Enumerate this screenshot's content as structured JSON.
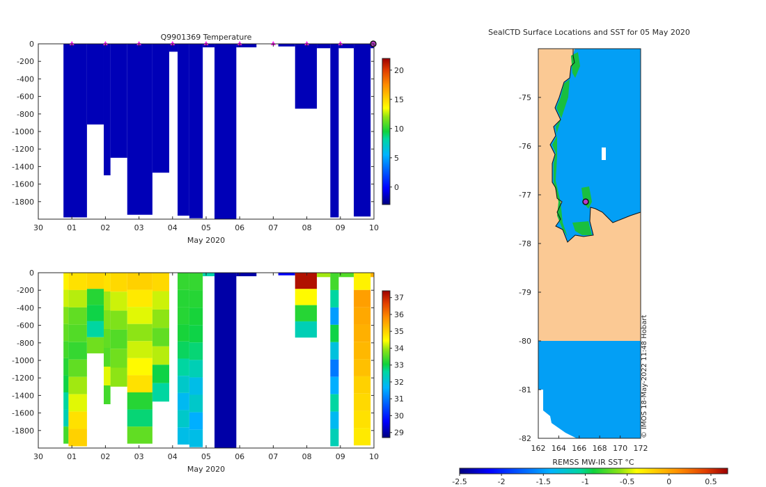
{
  "chart_data": [
    {
      "id": "temperature",
      "type": "heatmap",
      "title": "Q9901369  Temperature",
      "xlabel": "May 2020",
      "ylabel": "",
      "x_domain": [
        30,
        40
      ],
      "y_domain": [
        0,
        -2000
      ],
      "xticks": [
        30,
        31,
        32,
        33,
        34,
        35,
        36,
        37,
        38,
        39,
        40
      ],
      "xtick_labels": [
        "30",
        "01",
        "02",
        "03",
        "04",
        "05",
        "06",
        "07",
        "08",
        "09",
        "10"
      ],
      "yticks": [
        0,
        -200,
        -400,
        -600,
        -800,
        -1000,
        -1200,
        -1400,
        -1600,
        -1800
      ],
      "ytick_labels": [
        "0",
        "-200",
        "-400",
        "-600",
        "-800",
        "-1000",
        "-1200",
        "-1400",
        "-1600",
        "-1800"
      ],
      "colorbar": {
        "min": -3,
        "max": 22,
        "ticks": [
          0,
          5,
          10,
          15,
          20
        ],
        "tick_labels": [
          "0",
          "5",
          "10",
          "15",
          "20"
        ]
      },
      "profile_markers": [
        31,
        32,
        33,
        34,
        35,
        36,
        37,
        38,
        39
      ],
      "last_profile": 40,
      "profiles": [
        {
          "x0": 30.75,
          "x1": 31.45,
          "depth": 1980,
          "surface_depth": 0,
          "value": -1.8
        },
        {
          "x0": 31.45,
          "x1": 31.95,
          "depth": 920,
          "surface_depth": 0,
          "value": -1.8
        },
        {
          "x0": 31.95,
          "x1": 32.15,
          "depth": 1500,
          "surface_depth": 0,
          "value": -1.8
        },
        {
          "x0": 32.15,
          "x1": 32.65,
          "depth": 1300,
          "surface_depth": 0,
          "value": -1.8
        },
        {
          "x0": 32.65,
          "x1": 33.4,
          "depth": 1950,
          "surface_depth": 0,
          "value": -1.8
        },
        {
          "x0": 33.4,
          "x1": 33.9,
          "depth": 1470,
          "surface_depth": 0,
          "value": -1.8
        },
        {
          "x0": 33.9,
          "x1": 34.15,
          "depth": 90,
          "surface_depth": 0,
          "value": -1.8
        },
        {
          "x0": 34.15,
          "x1": 34.5,
          "depth": 1960,
          "surface_depth": 0,
          "value": -1.8
        },
        {
          "x0": 34.5,
          "x1": 34.9,
          "depth": 1990,
          "surface_depth": 0,
          "value": -1.8
        },
        {
          "x0": 34.9,
          "x1": 35.25,
          "depth": 40,
          "surface_depth": 0,
          "value": -1.8
        },
        {
          "x0": 35.25,
          "x1": 35.9,
          "depth": 2000,
          "surface_depth": 0,
          "value": -1.8
        },
        {
          "x0": 35.9,
          "x1": 36.5,
          "depth": 40,
          "surface_depth": 0,
          "value": -1.8
        },
        {
          "x0": 37.15,
          "x1": 37.65,
          "depth": 30,
          "surface_depth": 0,
          "value": -1.8
        },
        {
          "x0": 37.65,
          "x1": 38.3,
          "depth": 740,
          "surface_depth": 0,
          "value": -1.8
        },
        {
          "x0": 38.3,
          "x1": 38.7,
          "depth": 50,
          "surface_depth": 0,
          "value": -1.8
        },
        {
          "x0": 38.7,
          "x1": 38.95,
          "depth": 1980,
          "surface_depth": 0,
          "value": -1.8
        },
        {
          "x0": 38.95,
          "x1": 39.4,
          "depth": 50,
          "surface_depth": 0,
          "value": -1.8
        },
        {
          "x0": 39.4,
          "x1": 39.9,
          "depth": 1970,
          "surface_depth": 0,
          "value": -1.8
        },
        {
          "x0": 39.9,
          "x1": 40.0,
          "depth": 50,
          "surface_depth": 0,
          "value": -1.8
        }
      ]
    },
    {
      "id": "salinity",
      "type": "heatmap",
      "title": "",
      "xlabel": "May 2020",
      "ylabel": "",
      "x_domain": [
        30,
        40
      ],
      "y_domain": [
        0,
        -2000
      ],
      "xticks": [
        30,
        31,
        32,
        33,
        34,
        35,
        36,
        37,
        38,
        39,
        40
      ],
      "xtick_labels": [
        "30",
        "01",
        "02",
        "03",
        "04",
        "05",
        "06",
        "07",
        "08",
        "09",
        "10"
      ],
      "yticks": [
        0,
        -200,
        -400,
        -600,
        -800,
        -1000,
        -1200,
        -1400,
        -1600,
        -1800
      ],
      "ytick_labels": [
        "0",
        "-200",
        "-400",
        "-600",
        "-800",
        "-1000",
        "-1200",
        "-1400",
        "-1600",
        "-1800"
      ],
      "colorbar": {
        "min": 28.7,
        "max": 37.4,
        "ticks": [
          29,
          30,
          31,
          32,
          33,
          34,
          35,
          36,
          37
        ],
        "tick_labels": [
          "29",
          "30",
          "31",
          "32",
          "33",
          "34",
          "35",
          "36",
          "37"
        ]
      },
      "profiles": [
        {
          "x0": 30.75,
          "x1": 30.9,
          "depth": 1950,
          "values": [
            34.6,
            34.2,
            33.8,
            33.6,
            33.4,
            33.2,
            33.0,
            32.6,
            32.4,
            33.4
          ]
        },
        {
          "x0": 30.9,
          "x1": 31.45,
          "depth": 1980,
          "values": [
            34.8,
            34.1,
            33.6,
            33.5,
            33.3,
            33.6,
            34.0,
            34.3,
            34.8,
            35.0
          ]
        },
        {
          "x0": 31.45,
          "x1": 31.95,
          "depth": 920,
          "values": [
            34.9,
            33.2,
            33.0,
            32.6,
            33.7
          ]
        },
        {
          "x0": 31.95,
          "x1": 32.15,
          "depth": 1500,
          "values": [
            34.8,
            34.0,
            33.8,
            33.6,
            33.5,
            34.3,
            33.4
          ]
        },
        {
          "x0": 32.15,
          "x1": 32.65,
          "depth": 1300,
          "values": [
            34.9,
            34.2,
            33.8,
            33.5,
            33.7,
            33.9
          ]
        },
        {
          "x0": 32.65,
          "x1": 33.4,
          "depth": 1950,
          "values": [
            35.0,
            34.7,
            34.3,
            33.9,
            34.2,
            34.5,
            34.8,
            33.2,
            32.8,
            33.6
          ]
        },
        {
          "x0": 33.4,
          "x1": 33.9,
          "depth": 1470,
          "values": [
            34.9,
            34.2,
            33.9,
            33.6,
            34.1,
            33.0,
            32.6
          ]
        },
        {
          "x0": 34.15,
          "x1": 34.5,
          "depth": 1960,
          "values": [
            33.3,
            33.2,
            33.2,
            33.1,
            32.9,
            32.6,
            32.2,
            31.8,
            32.2,
            31.9
          ]
        },
        {
          "x0": 34.5,
          "x1": 34.9,
          "depth": 1990,
          "values": [
            33.3,
            33.2,
            33.1,
            33.0,
            32.8,
            32.4,
            31.9,
            32.2,
            31.6,
            31.9
          ]
        },
        {
          "x0": 34.9,
          "x1": 35.25,
          "depth": 40,
          "values": [
            32.5
          ]
        },
        {
          "x0": 35.25,
          "x1": 35.9,
          "depth": 2000,
          "values": [
            29.0
          ]
        },
        {
          "x0": 35.9,
          "x1": 36.5,
          "depth": 40,
          "values": [
            29.0
          ]
        },
        {
          "x0": 37.15,
          "x1": 37.65,
          "depth": 30,
          "values": [
            29.6
          ]
        },
        {
          "x0": 37.65,
          "x1": 38.3,
          "depth": 740,
          "values": [
            37.2,
            34.5,
            33.2,
            32.4
          ]
        },
        {
          "x0": 38.3,
          "x1": 38.7,
          "depth": 50,
          "values": [
            34.0
          ]
        },
        {
          "x0": 38.7,
          "x1": 38.95,
          "depth": 1980,
          "values": [
            33.4,
            32.6,
            31.4,
            33.0,
            32.0,
            31.0,
            31.6,
            32.6,
            31.8,
            32.4
          ]
        },
        {
          "x0": 38.95,
          "x1": 39.4,
          "depth": 50,
          "values": [
            33.5
          ]
        },
        {
          "x0": 39.4,
          "x1": 39.9,
          "depth": 1970,
          "values": [
            34.6,
            35.6,
            35.5,
            35.4,
            35.3,
            35.2,
            35.0,
            34.9,
            34.8,
            34.7
          ]
        },
        {
          "x0": 39.9,
          "x1": 40.0,
          "depth": 50,
          "values": [
            35.4
          ]
        }
      ]
    },
    {
      "id": "sst_map",
      "type": "heatmap",
      "title": "SealCTD Surface Locations and SST for 05 May 2020",
      "xlabel": "",
      "ylabel": "",
      "lon_range": [
        162,
        172
      ],
      "lat_range": [
        -82,
        -74
      ],
      "xticks": [
        162,
        164,
        166,
        168,
        170,
        172
      ],
      "xtick_labels": [
        "162",
        "164",
        "166",
        "168",
        "170",
        "172"
      ],
      "yticks": [
        -75,
        -76,
        -77,
        -78,
        -79,
        -80,
        -81,
        -82
      ],
      "ytick_labels": [
        "-75",
        "-76",
        "-77",
        "-78",
        "-79",
        "-80",
        "-81",
        "-82"
      ],
      "ocean_sst": -1.7,
      "coast_sst": -1.0,
      "seal_position": {
        "lon": 166.6,
        "lat": -77.15
      },
      "colorbar": {
        "label": "REMSS MW-IR SST °C",
        "min": -2.5,
        "max": 0.7,
        "ticks": [
          -2.5,
          -2,
          -1.5,
          -1,
          -0.5,
          0,
          0.5
        ],
        "tick_labels": [
          "-2.5",
          "-2",
          "-1.5",
          "-1",
          "-0.5",
          "0",
          "0.5"
        ]
      }
    }
  ],
  "credit": "© IMOS 18-May-2022 11:48 Hobart",
  "colors": {
    "land": "#fbc994",
    "ocean_sst": "#039ff5",
    "marker": "#ff1ff0",
    "seal_fill": "#b838c8"
  }
}
